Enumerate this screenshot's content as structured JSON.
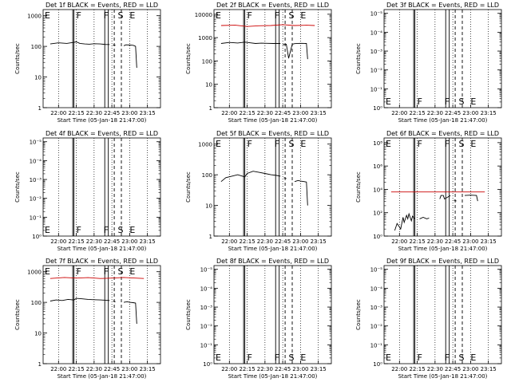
{
  "common": {
    "x_tick_labels": [
      "22:00",
      "22:15",
      "22:30",
      "22:45",
      "23:00",
      "23:15"
    ],
    "x_label": "Start Time (05-Jan-18 21:47:00)",
    "y_label": "Counts/sec",
    "event_marks": [
      "E",
      "F",
      "F",
      "S",
      "E"
    ],
    "colors": {
      "events": "#000000",
      "lld": "#cc0000",
      "axes": "#000000"
    }
  },
  "chart_data": [
    {
      "type": "line",
      "title": "Det 1f BLACK = Events, RED = LLD",
      "ytick_labels": [
        "1",
        "10",
        "100",
        "1000"
      ],
      "yscale": "log",
      "xlim": [
        "21:47",
        "23:26"
      ],
      "series": [
        {
          "color": "#000000",
          "x": [
            "21:53",
            "22:00",
            "22:07",
            "22:13",
            "22:15",
            "22:18",
            "22:22",
            "22:26",
            "22:30",
            "22:35",
            "22:40",
            "22:43"
          ],
          "y": [
            120,
            130,
            125,
            135,
            140,
            125,
            120,
            118,
            122,
            120,
            115,
            115
          ]
        },
        {
          "color": "#000000",
          "x": [
            "22:46",
            "22:48"
          ],
          "y": [
            110,
            108
          ]
        },
        {
          "color": "#000000",
          "x": [
            "22:55",
            "22:57",
            "23:00",
            "23:03",
            "23:05",
            "23:06"
          ],
          "y": [
            105,
            112,
            110,
            108,
            100,
            20
          ]
        }
      ],
      "marks_on_top": true
    },
    {
      "type": "line",
      "title": "Det 2f BLACK = Events, RED = LLD",
      "ytick_labels": [
        "1",
        "10",
        "100",
        "1000",
        "10000"
      ],
      "yscale": "log",
      "xlim": [
        "21:47",
        "23:26"
      ],
      "series": [
        {
          "color": "#cc0000",
          "x": [
            "21:53",
            "22:05",
            "22:15",
            "22:25",
            "22:35",
            "22:45",
            "22:55",
            "23:05",
            "23:12"
          ],
          "y": [
            3300,
            3400,
            3000,
            3200,
            3300,
            3600,
            3300,
            3400,
            3300
          ]
        },
        {
          "color": "#000000",
          "x": [
            "21:53",
            "22:00",
            "22:07",
            "22:13",
            "22:17",
            "22:22",
            "22:27",
            "22:32",
            "22:37",
            "22:43"
          ],
          "y": [
            560,
            620,
            590,
            640,
            600,
            560,
            580,
            570,
            560,
            560
          ]
        },
        {
          "color": "#000000",
          "x": [
            "22:45",
            "22:48",
            "22:50",
            "22:53",
            "22:55",
            "23:00",
            "23:05",
            "23:06"
          ],
          "y": [
            500,
            520,
            130,
            520,
            550,
            570,
            560,
            120
          ]
        }
      ],
      "marks_on_top": true
    },
    {
      "type": "line",
      "title": "Det 3f BLACK = Events, RED = LLD",
      "ytick_labels": [
        "10⁰",
        "10⁻¹",
        "10⁻²",
        "10⁻³",
        "10⁻⁴",
        "10⁻⁵"
      ],
      "yscale": "log",
      "xlim": [
        "21:47",
        "23:26"
      ],
      "series": [],
      "marks_on_top": false
    },
    {
      "type": "line",
      "title": "Det 4f BLACK = Events, RED = LLD",
      "ytick_labels": [
        "10⁰",
        "10⁻¹",
        "10⁻²",
        "10⁻³",
        "10⁻⁴",
        "10⁻⁵"
      ],
      "yscale": "log",
      "xlim": [
        "21:47",
        "23:26"
      ],
      "series": [],
      "marks_on_top": false
    },
    {
      "type": "line",
      "title": "Det 5f BLACK = Events, RED = LLD",
      "ytick_labels": [
        "1",
        "10",
        "100",
        "1000"
      ],
      "yscale": "log",
      "xlim": [
        "21:47",
        "23:26"
      ],
      "series": [
        {
          "color": "#000000",
          "x": [
            "21:53",
            "21:57",
            "22:02",
            "22:07",
            "22:13",
            "22:15",
            "22:20",
            "22:25",
            "22:30",
            "22:35",
            "22:40",
            "22:43"
          ],
          "y": [
            60,
            80,
            90,
            100,
            85,
            110,
            130,
            120,
            110,
            100,
            95,
            90
          ]
        },
        {
          "color": "#000000",
          "x": [
            "22:46",
            "22:48"
          ],
          "y": [
            80,
            75
          ]
        },
        {
          "color": "#000000",
          "x": [
            "22:55",
            "22:58",
            "23:00",
            "23:03",
            "23:05",
            "23:06"
          ],
          "y": [
            60,
            65,
            62,
            60,
            58,
            10
          ]
        }
      ],
      "marks_on_top": true
    },
    {
      "type": "line",
      "title": "Det 6f BLACK = Events, RED = LLD",
      "ytick_labels": [
        "10⁰",
        "10²",
        "10⁴",
        "10⁶",
        "10⁸"
      ],
      "yscale": "log",
      "xlim": [
        "21:47",
        "23:26"
      ],
      "series": [
        {
          "color": "#cc0000",
          "x": [
            "21:53",
            "22:05",
            "22:15",
            "22:30",
            "22:45",
            "23:00",
            "23:12"
          ],
          "y": [
            6000,
            6000,
            6000,
            6000,
            6000,
            6000,
            6000
          ]
        },
        {
          "color": "#000000",
          "x": [
            "21:56",
            "21:58",
            "22:00",
            "22:01",
            "22:03",
            "22:04",
            "22:06",
            "22:07",
            "22:08",
            "22:10",
            "22:11",
            "22:13"
          ],
          "y": [
            3,
            12,
            6,
            4,
            40,
            15,
            60,
            30,
            80,
            20,
            50,
            30
          ]
        },
        {
          "color": "#000000",
          "x": [
            "22:17",
            "22:20",
            "22:23",
            "22:25"
          ],
          "y": [
            30,
            40,
            30,
            35
          ]
        },
        {
          "color": "#000000",
          "x": [
            "22:34",
            "22:35",
            "22:37",
            "22:38",
            "22:43"
          ],
          "y": [
            1500,
            3000,
            3000,
            1500,
            3000
          ]
        },
        {
          "color": "#000000",
          "x": [
            "22:46",
            "22:48"
          ],
          "y": [
            1200,
            1000
          ]
        },
        {
          "color": "#000000",
          "x": [
            "22:55",
            "23:00",
            "23:05",
            "23:06"
          ],
          "y": [
            3000,
            3200,
            3000,
            1000
          ]
        }
      ],
      "marks_on_top": true
    },
    {
      "type": "line",
      "title": "Det 7f BLACK = Events, RED = LLD",
      "ytick_labels": [
        "1",
        "10",
        "100",
        "1000"
      ],
      "yscale": "log",
      "xlim": [
        "21:47",
        "23:26"
      ],
      "series": [
        {
          "color": "#cc0000",
          "x": [
            "21:53",
            "22:05",
            "22:15",
            "22:25",
            "22:35",
            "22:45",
            "22:55",
            "23:05",
            "23:12"
          ],
          "y": [
            600,
            650,
            620,
            640,
            600,
            620,
            650,
            620,
            600
          ]
        },
        {
          "color": "#000000",
          "x": [
            "21:53",
            "21:58",
            "22:03",
            "22:08",
            "22:13",
            "22:15",
            "22:20",
            "22:25",
            "22:30",
            "22:35",
            "22:40",
            "22:43"
          ],
          "y": [
            110,
            120,
            115,
            125,
            120,
            135,
            130,
            125,
            122,
            120,
            118,
            115
          ]
        },
        {
          "color": "#000000",
          "x": [
            "22:46",
            "22:48"
          ],
          "y": [
            110,
            105
          ]
        },
        {
          "color": "#000000",
          "x": [
            "22:55",
            "22:58",
            "23:00",
            "23:03",
            "23:05",
            "23:06"
          ],
          "y": [
            100,
            105,
            100,
            98,
            95,
            20
          ]
        }
      ],
      "marks_on_top": true
    },
    {
      "type": "line",
      "title": "Det 8f BLACK = Events, RED = LLD",
      "ytick_labels": [
        "10⁰",
        "10⁻¹",
        "10⁻²",
        "10⁻³",
        "10⁻⁴",
        "10⁻⁵"
      ],
      "yscale": "log",
      "xlim": [
        "21:47",
        "23:26"
      ],
      "series": [],
      "marks_on_top": false
    },
    {
      "type": "line",
      "title": "Det 9f BLACK = Events, RED = LLD",
      "ytick_labels": [
        "10⁰",
        "10⁻¹",
        "10⁻²",
        "10⁻³",
        "10⁻⁴",
        "10⁻⁵"
      ],
      "yscale": "log",
      "xlim": [
        "21:47",
        "23:26"
      ],
      "series": [],
      "marks_on_top": false
    }
  ]
}
